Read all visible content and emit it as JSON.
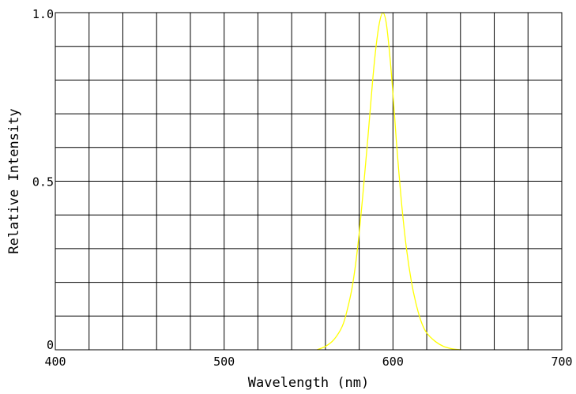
{
  "chart_data": {
    "type": "line",
    "title": "",
    "xlabel": "Wavelength (nm)",
    "ylabel": "Relative Intensity",
    "xlim": [
      400,
      700
    ],
    "ylim": [
      0,
      1.0
    ],
    "grid": true,
    "x_ticks": [
      {
        "value": 400,
        "label": "400"
      },
      {
        "value": 500,
        "label": "500"
      },
      {
        "value": 600,
        "label": "600"
      },
      {
        "value": 700,
        "label": "700"
      }
    ],
    "y_ticks": [
      {
        "value": 0,
        "label": "0"
      },
      {
        "value": 0.5,
        "label": "0.5"
      },
      {
        "value": 1.0,
        "label": "1.0"
      }
    ],
    "series": [
      {
        "color": "#ffff00",
        "x": [
          555,
          560,
          565,
          570,
          573,
          576,
          579,
          582,
          585,
          588,
          590,
          592,
          594,
          596,
          598,
          600,
          602,
          605,
          608,
          611,
          614,
          617,
          620,
          625,
          630,
          635,
          640
        ],
        "y": [
          0.0,
          0.01,
          0.03,
          0.07,
          0.12,
          0.19,
          0.3,
          0.45,
          0.62,
          0.8,
          0.9,
          0.97,
          1.0,
          0.97,
          0.88,
          0.76,
          0.62,
          0.44,
          0.3,
          0.2,
          0.13,
          0.08,
          0.05,
          0.025,
          0.01,
          0.003,
          0.0
        ]
      }
    ]
  }
}
